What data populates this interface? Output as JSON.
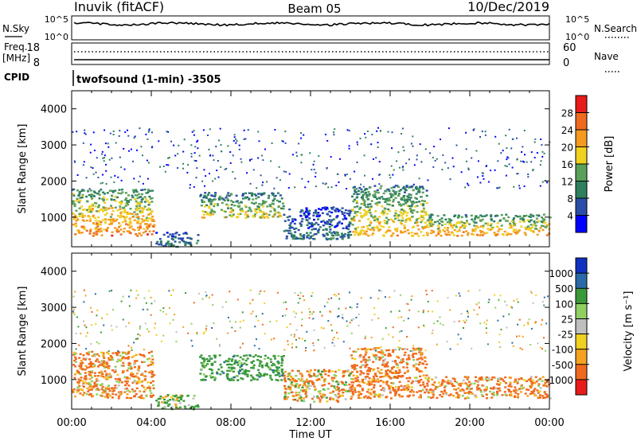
{
  "header": {
    "title": "Inuvik (fitACF)",
    "beam": "Beam 05",
    "date": "10/Dec/2019"
  },
  "noise_panel": {
    "left_label": "N.Sky",
    "right_label": "N.Search",
    "left_ticks": [
      "10^5",
      "10^0"
    ],
    "right_ticks": [
      "10^5",
      "10^0"
    ]
  },
  "freq_panel": {
    "left_label_line1": "Freq.",
    "left_label_line2": "[MHz]",
    "right_label": "Nave",
    "left_ticks": [
      "18",
      "8"
    ],
    "right_ticks": [
      "60",
      "0"
    ]
  },
  "cpid": {
    "label": "CPID",
    "program": "twofsound (1-min) -3505"
  },
  "colors": {
    "power_scale": [
      "#0000ff",
      "#2a4ea8",
      "#2e7f5e",
      "#5aa05a",
      "#f0d020",
      "#f39a1f",
      "#ef6a1e",
      "#e81a1a"
    ],
    "velocity_scale": [
      "#e81a1a",
      "#ef6a1e",
      "#f4a21f",
      "#f0d020",
      "#bfbfbf",
      "#8fd060",
      "#3a9a3a",
      "#2a6aa8",
      "#1030c0"
    ]
  },
  "chart_data": [
    {
      "type": "heatmap",
      "name": "power",
      "ylabel": "Slant Range [km]",
      "ylim": [
        180,
        4500
      ],
      "yticks": [
        "4000",
        "3000",
        "2000",
        "1000"
      ],
      "xlim": [
        0,
        24
      ],
      "colorbar": {
        "label": "Power [dB]",
        "ticks": [
          "28",
          "24",
          "20",
          "16",
          "12",
          "8",
          "4"
        ],
        "range": [
          0,
          32
        ]
      },
      "echo_regions": [
        {
          "t0": 0.0,
          "t1": 4.1,
          "r0": 500,
          "r1": 1800,
          "level": 24
        },
        {
          "t0": 4.2,
          "t1": 6.3,
          "r0": 200,
          "r1": 600,
          "level": 10
        },
        {
          "t0": 6.4,
          "t1": 10.6,
          "r0": 1000,
          "r1": 1700,
          "level": 18
        },
        {
          "t0": 10.6,
          "t1": 14.0,
          "r0": 400,
          "r1": 1300,
          "level": 9
        },
        {
          "t0": 14.0,
          "t1": 17.8,
          "r0": 500,
          "r1": 1900,
          "level": 20
        },
        {
          "t0": 17.8,
          "t1": 24.0,
          "r0": 500,
          "r1": 1100,
          "level": 22
        }
      ]
    },
    {
      "type": "heatmap",
      "name": "velocity",
      "xlabel": "Time UT",
      "ylabel": "Slant Range [km]",
      "ylim": [
        180,
        4500
      ],
      "yticks": [
        "4000",
        "3000",
        "2000",
        "1000"
      ],
      "xlim": [
        0,
        24
      ],
      "xticks": [
        "00:00",
        "04:00",
        "08:00",
        "12:00",
        "16:00",
        "20:00",
        "00:00"
      ],
      "colorbar": {
        "label": "Velocity [m s⁻¹]",
        "ticks": [
          "1000",
          "500",
          "100",
          "25",
          "-25",
          "-100",
          "-500",
          "-1000"
        ]
      },
      "echo_regions": [
        {
          "t0": 0.0,
          "t1": 4.1,
          "r0": 500,
          "r1": 1800,
          "level": -150
        },
        {
          "t0": 4.2,
          "t1": 6.3,
          "r0": 200,
          "r1": 600,
          "level": 150
        },
        {
          "t0": 6.4,
          "t1": 10.6,
          "r0": 1000,
          "r1": 1700,
          "level": 300
        },
        {
          "t0": 10.6,
          "t1": 14.0,
          "r0": 400,
          "r1": 1300,
          "level": -100
        },
        {
          "t0": 14.0,
          "t1": 17.8,
          "r0": 500,
          "r1": 1900,
          "level": -200
        },
        {
          "t0": 17.8,
          "t1": 24.0,
          "r0": 500,
          "r1": 1100,
          "level": -150
        }
      ]
    }
  ]
}
